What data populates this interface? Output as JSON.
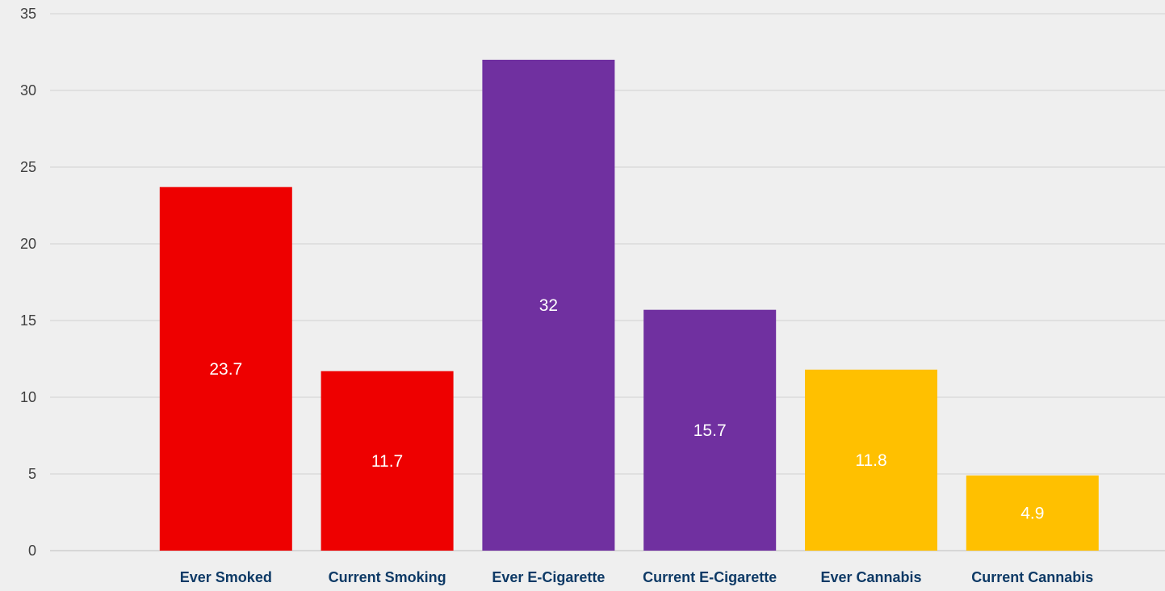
{
  "chart_data": {
    "type": "bar",
    "categories": [
      "Ever Smoked",
      "Current Smoking",
      "Ever E-Cigarette",
      "Current E-Cigarette",
      "Ever Cannabis",
      "Current Cannabis"
    ],
    "values": [
      23.7,
      11.7,
      32,
      15.7,
      11.8,
      4.9
    ],
    "data_labels": [
      "23.7",
      "11.7",
      "32",
      "15.7",
      "11.8",
      "4.9"
    ],
    "colors": [
      "#ee0000",
      "#ee0000",
      "#7030a0",
      "#7030a0",
      "#ffc000",
      "#ffc000"
    ],
    "yticks": [
      "0",
      "5",
      "10",
      "15",
      "20",
      "25",
      "30",
      "35"
    ],
    "ylim": [
      0,
      35
    ],
    "grid": true,
    "legend": "none",
    "title": "",
    "xlabel": "",
    "ylabel": ""
  }
}
